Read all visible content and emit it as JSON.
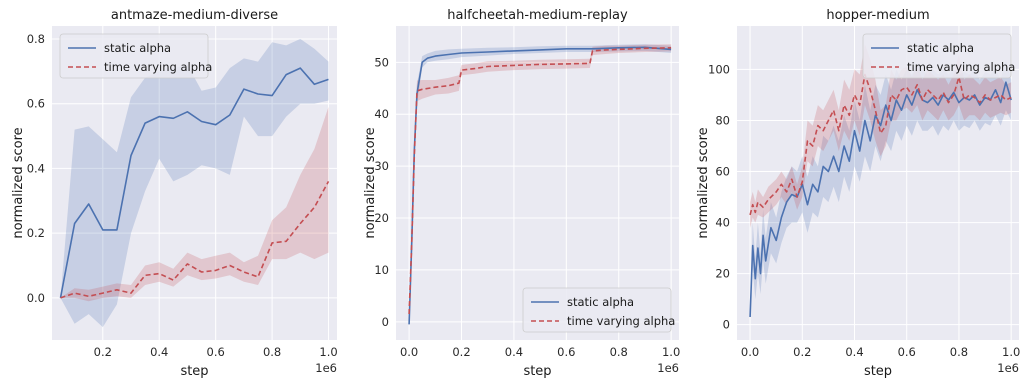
{
  "colors": {
    "static": "#4c72b0",
    "varying": "#c44e52",
    "axes_bg": "#eaeaf2",
    "grid": "#ffffff"
  },
  "chart_data": [
    {
      "type": "line",
      "title": "antmaze-medium-diverse",
      "xlabel": "step",
      "ylabel": "normalized score",
      "x_offset_text": "1e6",
      "xlim": [
        0.02,
        1.03
      ],
      "ylim": [
        -0.13,
        0.84
      ],
      "xticks": [
        0.2,
        0.4,
        0.6,
        0.8,
        1.0
      ],
      "xtick_labels": [
        "0.2",
        "0.4",
        "0.6",
        "0.8",
        "1.0"
      ],
      "yticks": [
        0.0,
        0.2,
        0.4,
        0.6,
        0.8
      ],
      "ytick_labels": [
        "0.0",
        "0.2",
        "0.4",
        "0.6",
        "0.8"
      ],
      "grid": true,
      "legend_position": "top-left",
      "series": [
        {
          "name": "static alpha",
          "style": "solid",
          "x": [
            0.05,
            0.1,
            0.15,
            0.2,
            0.25,
            0.3,
            0.35,
            0.4,
            0.45,
            0.5,
            0.55,
            0.6,
            0.65,
            0.7,
            0.75,
            0.8,
            0.85,
            0.9,
            0.95,
            1.0
          ],
          "y": [
            0.0,
            0.23,
            0.29,
            0.21,
            0.21,
            0.44,
            0.54,
            0.56,
            0.555,
            0.575,
            0.545,
            0.535,
            0.565,
            0.645,
            0.63,
            0.625,
            0.69,
            0.71,
            0.66,
            0.675
          ],
          "lower": [
            0.0,
            -0.08,
            -0.05,
            -0.09,
            -0.02,
            0.2,
            0.33,
            0.43,
            0.36,
            0.38,
            0.41,
            0.4,
            0.38,
            0.56,
            0.5,
            0.5,
            0.56,
            0.6,
            0.6,
            0.61
          ],
          "upper": [
            0.0,
            0.52,
            0.53,
            0.49,
            0.45,
            0.62,
            0.68,
            0.7,
            0.71,
            0.72,
            0.64,
            0.65,
            0.71,
            0.74,
            0.73,
            0.79,
            0.78,
            0.8,
            0.77,
            0.73
          ]
        },
        {
          "name": "time varying alpha",
          "style": "dashed",
          "x": [
            0.05,
            0.1,
            0.15,
            0.2,
            0.25,
            0.3,
            0.35,
            0.4,
            0.45,
            0.5,
            0.55,
            0.6,
            0.65,
            0.7,
            0.75,
            0.8,
            0.85,
            0.9,
            0.95,
            1.0
          ],
          "y": [
            0.0,
            0.015,
            0.005,
            0.015,
            0.025,
            0.015,
            0.07,
            0.075,
            0.055,
            0.105,
            0.08,
            0.085,
            0.1,
            0.08,
            0.065,
            0.17,
            0.175,
            0.23,
            0.28,
            0.36
          ],
          "lower": [
            0.0,
            0.0,
            -0.01,
            0.0,
            0.005,
            0.0,
            0.04,
            0.05,
            0.035,
            0.07,
            0.055,
            0.06,
            0.07,
            0.05,
            0.04,
            0.12,
            0.12,
            0.14,
            0.12,
            0.14
          ],
          "upper": [
            0.0,
            0.03,
            0.025,
            0.035,
            0.045,
            0.04,
            0.1,
            0.11,
            0.09,
            0.14,
            0.12,
            0.13,
            0.14,
            0.11,
            0.13,
            0.24,
            0.28,
            0.38,
            0.46,
            0.59
          ]
        }
      ]
    },
    {
      "type": "line",
      "title": "halfcheetah-medium-replay",
      "xlabel": "step",
      "ylabel": "normalized score",
      "x_offset_text": "1e6",
      "xlim": [
        -0.05,
        1.03
      ],
      "ylim": [
        -3.5,
        57
      ],
      "xticks": [
        0.0,
        0.2,
        0.4,
        0.6,
        0.8,
        1.0
      ],
      "xtick_labels": [
        "0.0",
        "0.2",
        "0.4",
        "0.6",
        "0.8",
        "1.0"
      ],
      "yticks": [
        0,
        10,
        20,
        30,
        40,
        50
      ],
      "ytick_labels": [
        "0",
        "10",
        "20",
        "30",
        "40",
        "50"
      ],
      "grid": true,
      "legend_position": "bottom-right",
      "series": [
        {
          "name": "static alpha",
          "style": "solid",
          "x": [
            0.0,
            0.01,
            0.02,
            0.03,
            0.04,
            0.05,
            0.07,
            0.1,
            0.15,
            0.2,
            0.3,
            0.4,
            0.5,
            0.6,
            0.7,
            0.8,
            0.9,
            1.0
          ],
          "y": [
            -0.5,
            15,
            33,
            44,
            47,
            50,
            50.8,
            51.2,
            51.5,
            51.8,
            52.0,
            52.2,
            52.4,
            52.6,
            52.6,
            52.8,
            52.9,
            52.5
          ],
          "lower": [
            -0.5,
            12,
            30,
            42,
            45.5,
            49,
            50,
            50.3,
            50.6,
            51,
            51.3,
            51.6,
            51.8,
            52,
            52,
            52.1,
            52.2,
            51.8
          ],
          "upper": [
            -0.5,
            18,
            36,
            46,
            48.5,
            51.2,
            51.7,
            52.2,
            52.5,
            52.6,
            52.8,
            52.9,
            53.1,
            53.2,
            53.2,
            53.4,
            53.5,
            53.2
          ]
        },
        {
          "name": "time varying alpha",
          "style": "dashed",
          "x": [
            0.0,
            0.01,
            0.02,
            0.03,
            0.05,
            0.1,
            0.15,
            0.19,
            0.2,
            0.25,
            0.3,
            0.4,
            0.5,
            0.6,
            0.69,
            0.7,
            0.75,
            0.8,
            0.9,
            1.0
          ],
          "y": [
            1.5,
            15,
            32,
            44.5,
            44.8,
            45.2,
            45.5,
            46,
            48.5,
            48.8,
            49.2,
            49.4,
            49.6,
            49.7,
            49.8,
            52.2,
            52.4,
            52.5,
            52.7,
            52.8
          ],
          "lower": [
            1.5,
            12,
            29,
            42.5,
            43,
            43.8,
            44,
            44.5,
            47.5,
            47.8,
            48.2,
            48.5,
            48.7,
            48.8,
            48.9,
            51.4,
            51.6,
            51.8,
            52,
            52.1
          ],
          "upper": [
            1.5,
            18,
            35,
            46.5,
            46.6,
            46.6,
            47,
            47.5,
            49.5,
            49.8,
            50.2,
            50.3,
            50.5,
            50.6,
            50.7,
            53,
            53.2,
            53.2,
            53.4,
            53.5
          ]
        }
      ]
    },
    {
      "type": "line",
      "title": "hopper-medium",
      "xlabel": "step",
      "ylabel": "normalized score",
      "x_offset_text": "1e6",
      "xlim": [
        -0.05,
        1.03
      ],
      "ylim": [
        -6,
        117
      ],
      "xticks": [
        0.0,
        0.2,
        0.4,
        0.6,
        0.8,
        1.0
      ],
      "xtick_labels": [
        "0.0",
        "0.2",
        "0.4",
        "0.6",
        "0.8",
        "1.0"
      ],
      "yticks": [
        0,
        20,
        40,
        60,
        80,
        100
      ],
      "ytick_labels": [
        "0",
        "20",
        "40",
        "60",
        "80",
        "100"
      ],
      "grid": true,
      "legend_position": "top-right",
      "series": [
        {
          "name": "static alpha",
          "style": "solid",
          "x": [
            0.0,
            0.01,
            0.02,
            0.03,
            0.04,
            0.05,
            0.06,
            0.08,
            0.1,
            0.12,
            0.14,
            0.16,
            0.18,
            0.2,
            0.22,
            0.24,
            0.26,
            0.28,
            0.3,
            0.32,
            0.34,
            0.36,
            0.38,
            0.4,
            0.42,
            0.44,
            0.46,
            0.48,
            0.5,
            0.52,
            0.54,
            0.56,
            0.58,
            0.6,
            0.62,
            0.64,
            0.66,
            0.68,
            0.7,
            0.72,
            0.74,
            0.76,
            0.78,
            0.8,
            0.82,
            0.84,
            0.86,
            0.88,
            0.9,
            0.92,
            0.94,
            0.96,
            0.98,
            1.0
          ],
          "y": [
            3,
            31,
            18,
            30,
            20,
            35,
            25,
            38,
            33,
            42,
            48,
            51,
            50,
            55,
            47,
            55,
            52,
            62,
            60,
            66,
            60,
            70,
            64,
            76,
            68,
            80,
            72,
            82,
            78,
            86,
            80,
            88,
            84,
            90,
            86,
            92,
            88,
            87,
            89,
            86,
            90,
            88,
            91,
            87,
            89,
            88,
            90,
            86,
            89,
            88,
            92,
            87,
            95,
            88
          ],
          "lower": [
            3,
            22,
            10,
            20,
            12,
            25,
            16,
            28,
            24,
            32,
            38,
            40,
            40,
            44,
            36,
            44,
            42,
            50,
            48,
            54,
            48,
            58,
            52,
            62,
            56,
            66,
            60,
            70,
            64,
            72,
            68,
            76,
            72,
            78,
            74,
            80,
            76,
            76,
            78,
            74,
            78,
            76,
            80,
            76,
            78,
            77,
            80,
            76,
            79,
            78,
            82,
            78,
            84,
            80
          ],
          "upper": [
            3,
            40,
            26,
            40,
            28,
            45,
            34,
            48,
            42,
            52,
            58,
            62,
            60,
            66,
            58,
            66,
            62,
            74,
            72,
            78,
            72,
            82,
            76,
            88,
            80,
            94,
            84,
            94,
            90,
            98,
            92,
            100,
            96,
            100,
            98,
            102,
            100,
            98,
            100,
            98,
            100,
            98,
            100,
            98,
            99,
            98,
            100,
            96,
            99,
            98,
            100,
            96,
            104,
            96
          ]
        },
        {
          "name": "time varying alpha",
          "style": "dashed",
          "x": [
            0.0,
            0.01,
            0.02,
            0.03,
            0.05,
            0.07,
            0.1,
            0.12,
            0.14,
            0.16,
            0.18,
            0.2,
            0.22,
            0.24,
            0.26,
            0.28,
            0.3,
            0.32,
            0.34,
            0.36,
            0.38,
            0.4,
            0.42,
            0.44,
            0.46,
            0.48,
            0.5,
            0.52,
            0.54,
            0.56,
            0.58,
            0.6,
            0.62,
            0.64,
            0.66,
            0.68,
            0.7,
            0.72,
            0.74,
            0.76,
            0.78,
            0.8,
            0.82,
            0.84,
            0.86,
            0.88,
            0.9,
            0.92,
            0.94,
            0.96,
            0.98,
            1.0
          ],
          "y": [
            43,
            47,
            44,
            48,
            46,
            49,
            52,
            55,
            52,
            57,
            50,
            56,
            72,
            70,
            78,
            76,
            80,
            84,
            76,
            86,
            82,
            90,
            86,
            98,
            92,
            84,
            75,
            78,
            90,
            88,
            92,
            93,
            90,
            94,
            88,
            92,
            90,
            88,
            91,
            87,
            90,
            97,
            88,
            90,
            89,
            87,
            90,
            88,
            89,
            90,
            88,
            89
          ],
          "lower": [
            38,
            42,
            40,
            43,
            42,
            44,
            47,
            50,
            47,
            52,
            45,
            50,
            64,
            62,
            70,
            68,
            72,
            76,
            68,
            76,
            72,
            80,
            74,
            86,
            80,
            72,
            66,
            70,
            80,
            80,
            84,
            85,
            83,
            86,
            80,
            84,
            82,
            80,
            84,
            80,
            82,
            86,
            80,
            82,
            82,
            80,
            83,
            81,
            82,
            83,
            82,
            83
          ],
          "upper": [
            48,
            52,
            48,
            53,
            50,
            54,
            57,
            60,
            57,
            62,
            55,
            62,
            80,
            78,
            86,
            84,
            88,
            92,
            84,
            96,
            92,
            100,
            98,
            110,
            104,
            96,
            84,
            86,
            100,
            96,
            100,
            101,
            97,
            102,
            96,
            100,
            98,
            96,
            98,
            94,
            98,
            106,
            96,
            98,
            96,
            94,
            97,
            95,
            96,
            97,
            94,
            95
          ]
        }
      ]
    }
  ]
}
